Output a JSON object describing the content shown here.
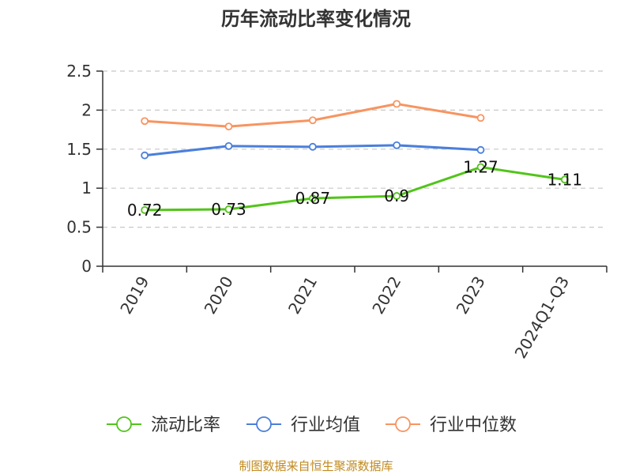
{
  "chart_data": {
    "type": "line",
    "title": "历年流动比率变化情况",
    "categories": [
      "2019",
      "2020",
      "2021",
      "2022",
      "2023",
      "2024Q1-Q3"
    ],
    "ylim": [
      0,
      2.5
    ],
    "yticks": [
      "0",
      "0.5",
      "1",
      "1.5",
      "2",
      "2.5"
    ],
    "grid": true,
    "legend_position": "bottom",
    "series": [
      {
        "name": "流动比率",
        "color": "#52c41a",
        "values": [
          0.72,
          0.73,
          0.87,
          0.9,
          1.27,
          1.11
        ],
        "labels": [
          "0.72",
          "0.73",
          "0.87",
          "0.9",
          "1.27",
          "1.11"
        ]
      },
      {
        "name": "行业均值",
        "color": "#4a7fdc",
        "values": [
          1.42,
          1.54,
          1.53,
          1.55,
          1.49,
          null
        ]
      },
      {
        "name": "行业中位数",
        "color": "#f89460",
        "values": [
          1.86,
          1.79,
          1.87,
          2.08,
          1.9,
          null
        ]
      }
    ]
  },
  "source": "制图数据来自恒生聚源数据库"
}
